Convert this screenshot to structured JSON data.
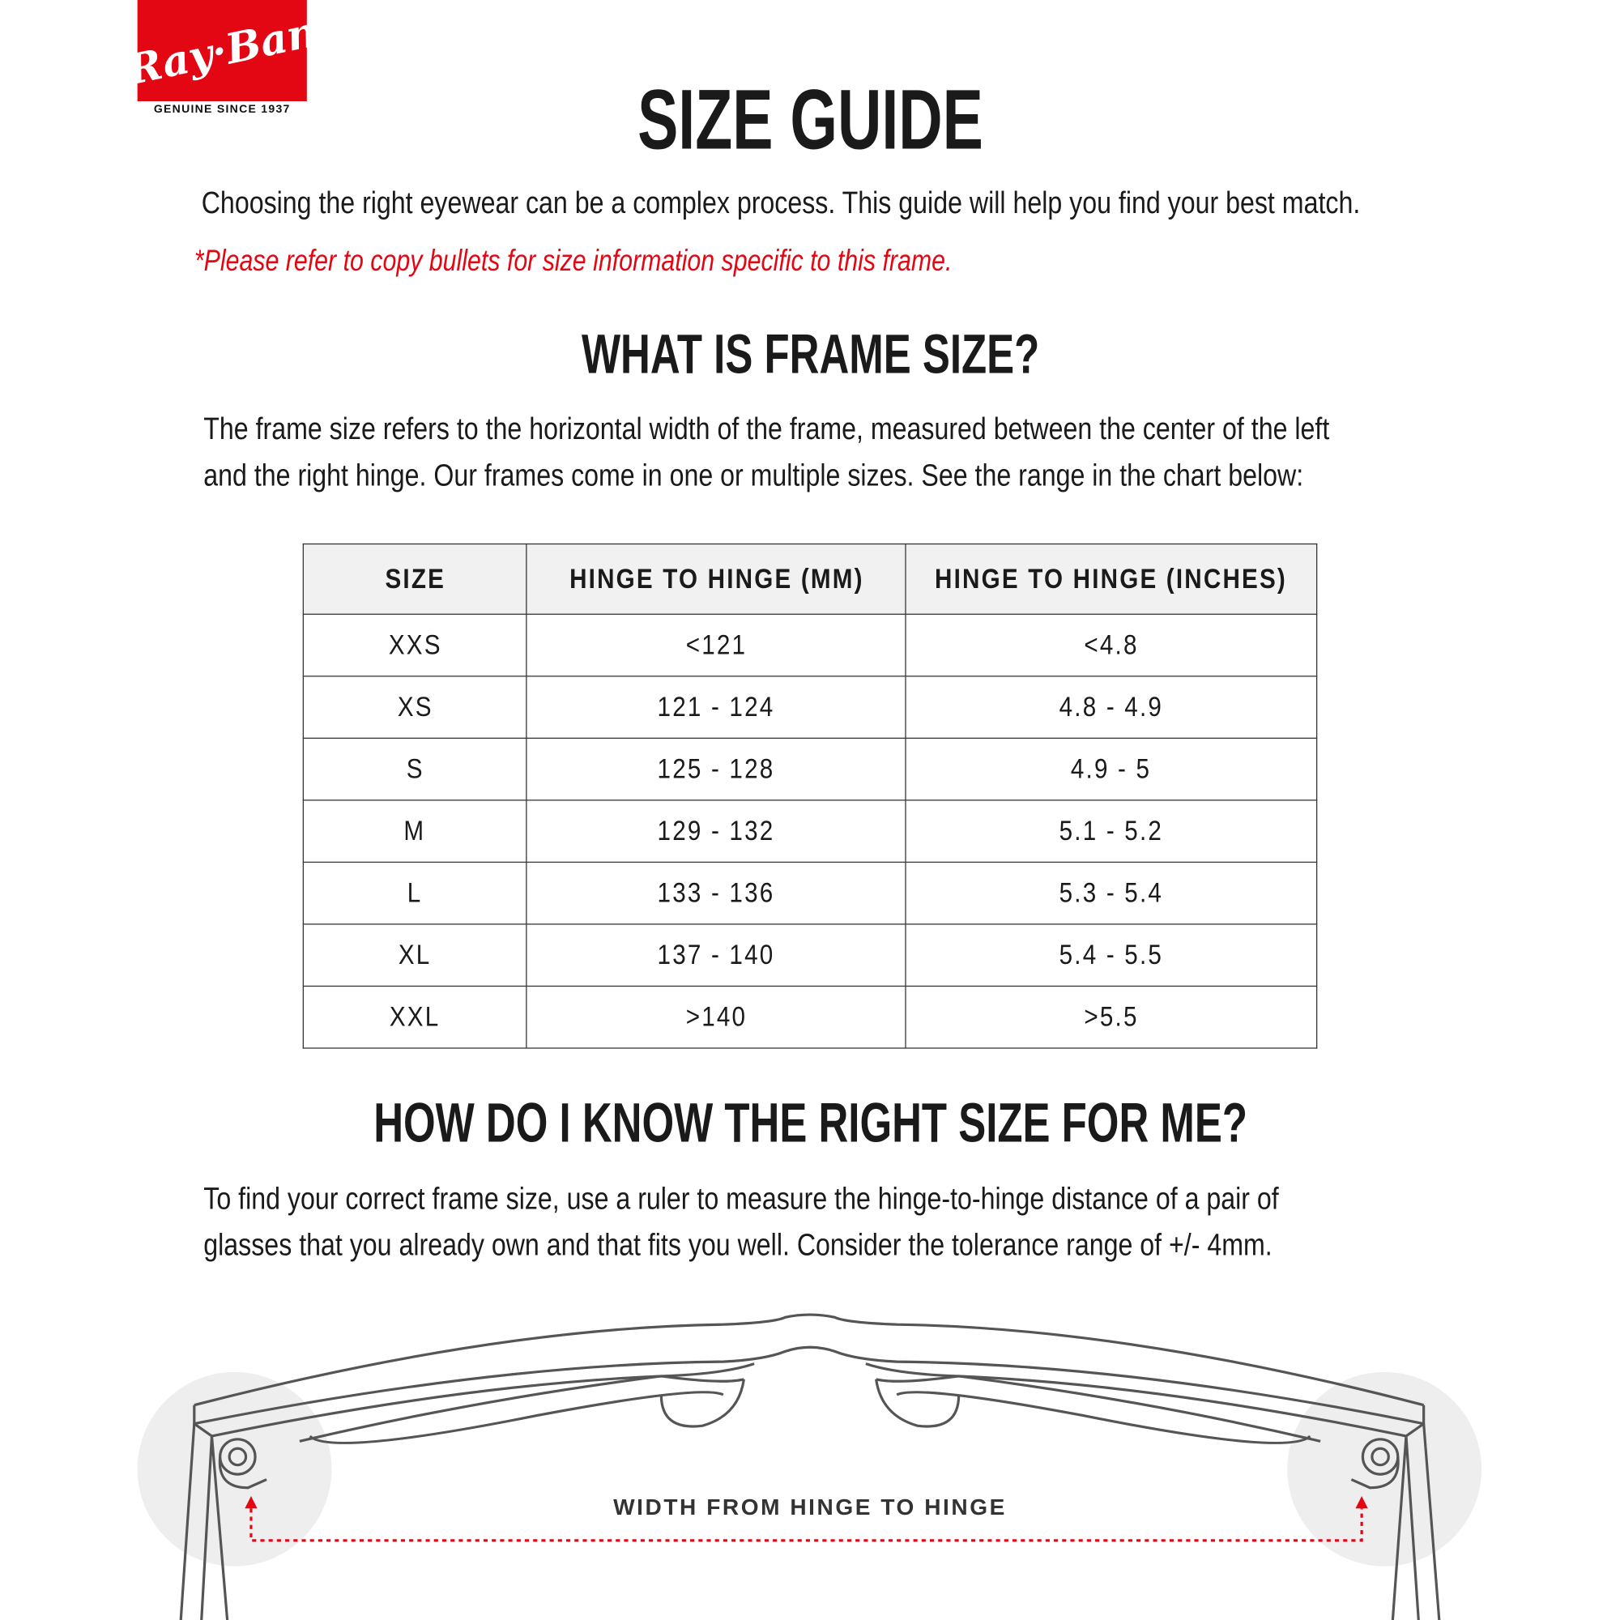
{
  "logo": {
    "brand": "Ray-Ban",
    "tagline": "GENUINE SINCE 1937"
  },
  "title": "SIZE GUIDE",
  "intro": "Choosing the right eyewear can be a complex process. This guide will help you find your best match.",
  "note": "*Please refer to copy bullets for size information specific to this frame.",
  "section1": {
    "heading": "WHAT IS FRAME SIZE?",
    "lines": [
      "The frame size refers to the horizontal width of the frame, measured between the center of the left",
      "and the right hinge. Our frames come in one or multiple sizes. See the range in the chart below:"
    ]
  },
  "table": {
    "headers": [
      "SIZE",
      "HINGE TO HINGE (MM)",
      "HINGE TO HINGE (INCHES)"
    ],
    "rows": [
      [
        "XXS",
        "<121",
        "<4.8"
      ],
      [
        "XS",
        "121 - 124",
        "4.8 - 4.9"
      ],
      [
        "S",
        "125 - 128",
        "4.9 - 5"
      ],
      [
        "M",
        "129 - 132",
        "5.1 - 5.2"
      ],
      [
        "L",
        "133 - 136",
        "5.3 - 5.4"
      ],
      [
        "XL",
        "137 - 140",
        "5.4 - 5.5"
      ],
      [
        "XXL",
        ">140",
        ">5.5"
      ]
    ]
  },
  "section2": {
    "heading": "HOW DO I KNOW THE RIGHT SIZE FOR ME?",
    "lines": [
      "To find your correct frame size, use a ruler to measure the hinge-to-hinge distance of a pair of",
      "glasses that you already own and that fits you well. Consider the tolerance range of +/- 4mm."
    ]
  },
  "diagram": {
    "label": "WIDTH FROM HINGE TO HINGE",
    "accent": "#e30613"
  }
}
